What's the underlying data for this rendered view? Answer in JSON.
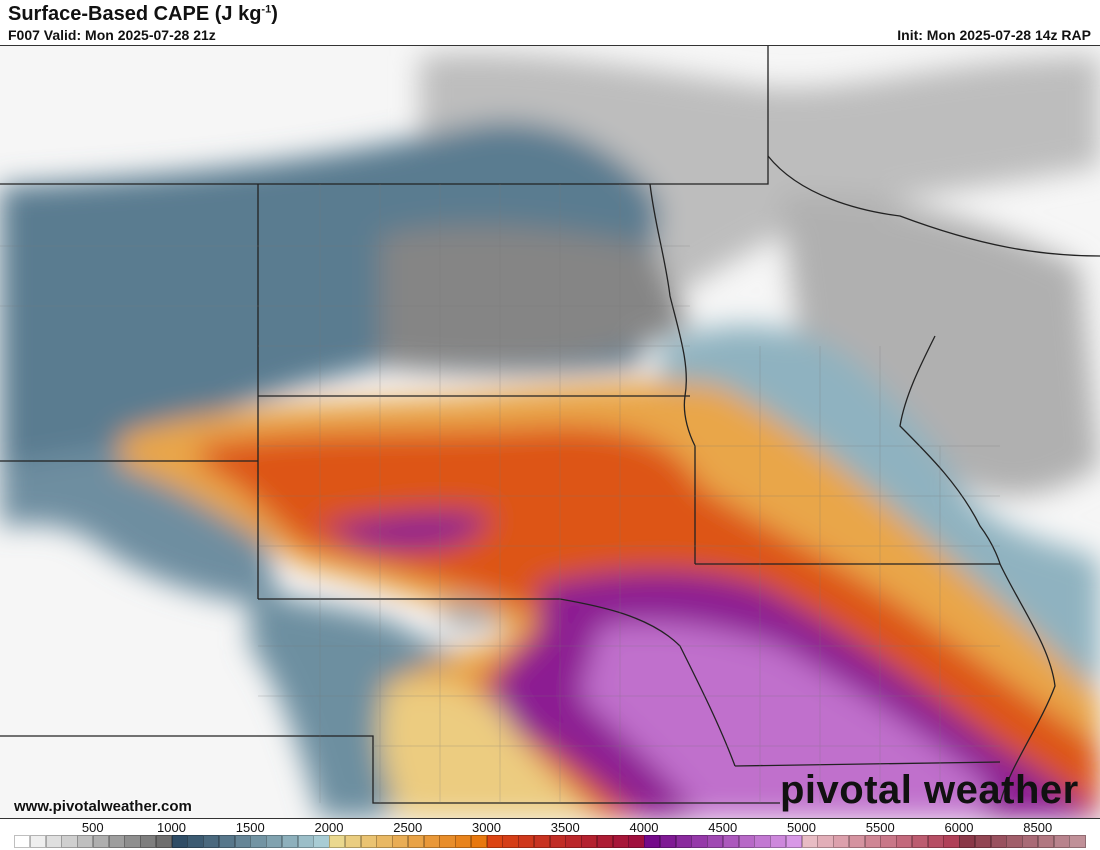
{
  "header": {
    "title": "Surface-Based CAPE (J kg",
    "title_sup": "-1",
    "title_end": ")",
    "valid": "F007 Valid: Mon 2025-07-28 21z",
    "init": "Init: Mon 2025-07-28 14z RAP"
  },
  "footer": {
    "url": "www.pivotalweather.com",
    "watermark": "pivotal weather"
  },
  "colorbar": {
    "labels": [
      "500",
      "1000",
      "1500",
      "2000",
      "2500",
      "3000",
      "3500",
      "4000",
      "4500",
      "5000",
      "5500",
      "6000",
      "8500"
    ],
    "segments": [
      {
        "from": "#ffffff",
        "to": "#6e6e6e",
        "count": 10
      },
      {
        "from": "#2f4d66",
        "to": "#a8ccd4",
        "count": 10
      },
      {
        "from": "#ead88e",
        "to": "#e8780e",
        "count": 10
      },
      {
        "from": "#dc4412",
        "to": "#a0103e",
        "count": 10
      },
      {
        "from": "#740a8a",
        "to": "#d898e6",
        "count": 10
      },
      {
        "from": "#e8bcc4",
        "to": "#b04058",
        "count": 10
      },
      {
        "from": "#8a3848",
        "to": "#c09098",
        "count": 8
      }
    ]
  }
}
